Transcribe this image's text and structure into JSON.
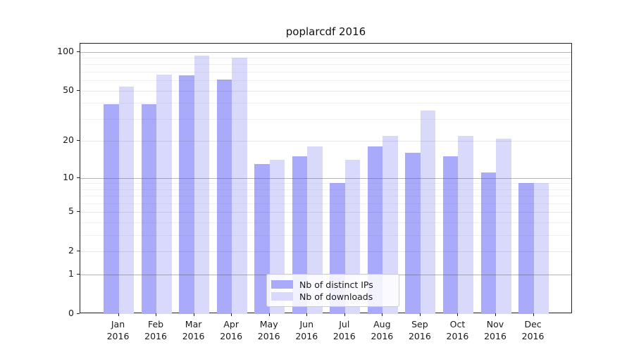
{
  "title": "poplarcdf 2016",
  "chart_data": {
    "type": "bar",
    "title": "poplarcdf 2016",
    "categories": [
      "Jan",
      "Feb",
      "Mar",
      "Apr",
      "May",
      "Jun",
      "Jul",
      "Aug",
      "Sep",
      "Oct",
      "Nov",
      "Dec"
    ],
    "category_year": "2016",
    "series": [
      {
        "name": "Nb of distinct IPs",
        "color": "#aaaafb",
        "values": [
          39,
          39,
          66,
          61,
          13,
          15,
          9,
          18,
          16,
          15,
          11,
          9
        ]
      },
      {
        "name": "Nb of downloads",
        "color": "#d9d9fb",
        "values": [
          54,
          67,
          93,
          90,
          14,
          18,
          14,
          22,
          35,
          22,
          21,
          9
        ]
      }
    ],
    "yscale": "log1p",
    "ylim": [
      0,
      100
    ],
    "yticks_labeled": [
      0,
      1,
      2,
      5,
      10,
      20,
      50,
      100
    ],
    "yticks_major": [
      1,
      10,
      100
    ],
    "yticks_minor_labeled": [
      2,
      5,
      20,
      50
    ],
    "yticks_minor_unlabeled": [
      3,
      4,
      6,
      7,
      8,
      9,
      30,
      40,
      60,
      70,
      80,
      90
    ],
    "grid": true,
    "legend_position": "lower center"
  }
}
